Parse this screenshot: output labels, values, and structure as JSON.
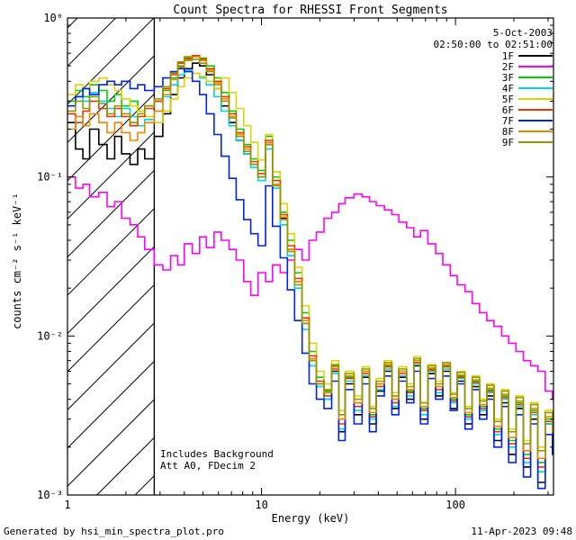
{
  "footer": {
    "left": "Generated by hsi_min_spectra_plot.pro",
    "right": "11-Apr-2023 09:48"
  },
  "annotations": {
    "line1": "Includes Background",
    "line2": "Att A0, FDecim 2"
  },
  "legend": {
    "date": "5-Oct-2003",
    "time": "02:50:00 to 02:51:00"
  },
  "chart_data": {
    "type": "line",
    "title": "Count Spectra for RHESSI Front Segments",
    "xlabel": "Energy (keV)",
    "ylabel": "counts cm⁻² s⁻¹ keV⁻¹",
    "xscale": "log",
    "yscale": "log",
    "xlim": [
      1,
      320
    ],
    "ylim": [
      0.001,
      1
    ],
    "grid": false,
    "legend_position": "top-right",
    "x_ticks": {
      "major": [
        1,
        10,
        100
      ],
      "labels": [
        "1",
        "10",
        "100"
      ]
    },
    "y_ticks": {
      "major": [
        1,
        0.1,
        0.01,
        0.001
      ],
      "labels": [
        "10⁰",
        "10⁻¹",
        "10⁻²",
        "10⁻³"
      ]
    },
    "hatch_region": {
      "xmin": 1,
      "xmax": 2.8
    },
    "x_bins_keV": [
      1.0,
      1.1,
      1.2,
      1.3,
      1.45,
      1.6,
      1.75,
      1.9,
      2.1,
      2.3,
      2.5,
      2.8,
      3.1,
      3.4,
      3.7,
      4.0,
      4.4,
      4.8,
      5.2,
      5.7,
      6.2,
      6.8,
      7.4,
      8.1,
      8.8,
      9.6,
      10.5,
      11.4,
      12.5,
      13.6,
      14.8,
      16.2,
      17.6,
      19.2,
      21,
      23,
      25,
      27,
      30,
      33,
      36,
      39,
      43,
      47,
      51,
      56,
      61,
      66,
      72,
      79,
      86,
      94,
      102,
      112,
      122,
      133,
      145,
      158,
      173,
      188,
      205,
      224,
      244,
      266,
      290,
      316
    ],
    "series": [
      {
        "name": "1F",
        "color": "#000000",
        "values": [
          0.22,
          0.15,
          0.13,
          0.2,
          0.16,
          0.13,
          0.18,
          0.14,
          0.12,
          0.15,
          0.13,
          0.18,
          0.25,
          0.33,
          0.42,
          0.48,
          0.52,
          0.5,
          0.44,
          0.36,
          0.28,
          0.22,
          0.17,
          0.14,
          0.12,
          0.1,
          0.16,
          0.09,
          0.055,
          0.035,
          0.022,
          0.012,
          0.007,
          0.005,
          0.004,
          0.006,
          0.0025,
          0.005,
          0.0032,
          0.0055,
          0.0028,
          0.0045,
          0.006,
          0.0035,
          0.0055,
          0.004,
          0.0065,
          0.003,
          0.0058,
          0.0042,
          0.006,
          0.0035,
          0.0052,
          0.0028,
          0.0048,
          0.0032,
          0.0042,
          0.0022,
          0.0038,
          0.0018,
          0.0035,
          0.0015,
          0.003,
          0.0012,
          0.0028,
          0.002
        ]
      },
      {
        "name": "2F",
        "color": "#ff00ff",
        "values": [
          0.1,
          0.085,
          0.09,
          0.075,
          0.08,
          0.065,
          0.07,
          0.055,
          0.05,
          0.042,
          0.035,
          0.028,
          0.026,
          0.032,
          0.028,
          0.038,
          0.033,
          0.042,
          0.036,
          0.045,
          0.04,
          0.035,
          0.03,
          0.022,
          0.018,
          0.025,
          0.022,
          0.028,
          0.025,
          0.03,
          0.035,
          0.03,
          0.04,
          0.045,
          0.055,
          0.06,
          0.068,
          0.074,
          0.078,
          0.075,
          0.07,
          0.066,
          0.062,
          0.058,
          0.052,
          0.048,
          0.042,
          0.046,
          0.038,
          0.033,
          0.028,
          0.024,
          0.021,
          0.019,
          0.016,
          0.014,
          0.0125,
          0.0115,
          0.01,
          0.009,
          0.008,
          0.007,
          0.0065,
          0.006,
          0.0045,
          0.004
        ]
      },
      {
        "name": "3F",
        "color": "#00cc00",
        "values": [
          0.3,
          0.35,
          0.32,
          0.38,
          0.35,
          0.3,
          0.33,
          0.28,
          0.3,
          0.26,
          0.28,
          0.3,
          0.35,
          0.42,
          0.5,
          0.55,
          0.58,
          0.56,
          0.5,
          0.42,
          0.34,
          0.26,
          0.2,
          0.16,
          0.13,
          0.11,
          0.18,
          0.1,
          0.06,
          0.04,
          0.025,
          0.014,
          0.008,
          0.0055,
          0.0045,
          0.0065,
          0.003,
          0.0055,
          0.0038,
          0.006,
          0.0032,
          0.005,
          0.0065,
          0.004,
          0.006,
          0.0045,
          0.007,
          0.0035,
          0.0062,
          0.0048,
          0.0065,
          0.004,
          0.0056,
          0.0032,
          0.0052,
          0.0036,
          0.0046,
          0.0026,
          0.0042,
          0.0022,
          0.0038,
          0.0018,
          0.0034,
          0.0016,
          0.003,
          0.0025
        ]
      },
      {
        "name": "4F",
        "color": "#00d5e8",
        "values": [
          0.28,
          0.32,
          0.3,
          0.34,
          0.3,
          0.27,
          0.24,
          0.27,
          0.24,
          0.21,
          0.23,
          0.26,
          0.32,
          0.38,
          0.44,
          0.47,
          0.45,
          0.42,
          0.38,
          0.32,
          0.26,
          0.21,
          0.17,
          0.14,
          0.115,
          0.095,
          0.15,
          0.085,
          0.05,
          0.032,
          0.02,
          0.011,
          0.0065,
          0.0048,
          0.004,
          0.0058,
          0.0026,
          0.0052,
          0.0034,
          0.0056,
          0.003,
          0.0046,
          0.0062,
          0.0036,
          0.0056,
          0.0042,
          0.0066,
          0.0032,
          0.006,
          0.0044,
          0.0062,
          0.0038,
          0.0054,
          0.003,
          0.005,
          0.0034,
          0.0044,
          0.0024,
          0.004,
          0.002,
          0.0036,
          0.0016,
          0.0032,
          0.0014,
          0.0028,
          0.0022
        ]
      },
      {
        "name": "5F",
        "color": "#e0d200",
        "values": [
          0.33,
          0.38,
          0.36,
          0.4,
          0.42,
          0.38,
          0.35,
          0.31,
          0.28,
          0.26,
          0.24,
          0.22,
          0.26,
          0.31,
          0.37,
          0.42,
          0.45,
          0.43,
          0.4,
          0.36,
          0.42,
          0.34,
          0.27,
          0.21,
          0.165,
          0.128,
          0.185,
          0.108,
          0.068,
          0.044,
          0.027,
          0.0155,
          0.009,
          0.006,
          0.005,
          0.007,
          0.0034,
          0.006,
          0.0042,
          0.0064,
          0.0036,
          0.0054,
          0.007,
          0.0044,
          0.0064,
          0.005,
          0.0074,
          0.0038,
          0.0066,
          0.0052,
          0.0068,
          0.0044,
          0.006,
          0.0036,
          0.0056,
          0.004,
          0.005,
          0.003,
          0.0046,
          0.0026,
          0.0042,
          0.0022,
          0.0038,
          0.002,
          0.0034,
          0.0028
        ]
      },
      {
        "name": "6F",
        "color": "#ee3300",
        "values": [
          0.25,
          0.22,
          0.26,
          0.3,
          0.27,
          0.24,
          0.27,
          0.24,
          0.21,
          0.24,
          0.27,
          0.3,
          0.36,
          0.44,
          0.52,
          0.56,
          0.58,
          0.55,
          0.48,
          0.4,
          0.32,
          0.25,
          0.19,
          0.155,
          0.125,
          0.105,
          0.17,
          0.095,
          0.058,
          0.037,
          0.023,
          0.013,
          0.0075,
          0.0052,
          0.0042,
          0.0062,
          0.0028,
          0.0054,
          0.0036,
          0.0058,
          0.0031,
          0.0048,
          0.0064,
          0.0038,
          0.0058,
          0.0044,
          0.0068,
          0.0034,
          0.0061,
          0.0046,
          0.0064,
          0.0039,
          0.0055,
          0.0031,
          0.0051,
          0.0035,
          0.0045,
          0.0025,
          0.0041,
          0.0021,
          0.0037,
          0.0017,
          0.0033,
          0.0015,
          0.0029,
          0.0023
        ]
      },
      {
        "name": "7F",
        "color": "#0022ee",
        "values": [
          0.28,
          0.32,
          0.36,
          0.33,
          0.38,
          0.4,
          0.38,
          0.4,
          0.36,
          0.38,
          0.35,
          0.37,
          0.42,
          0.46,
          0.48,
          0.46,
          0.4,
          0.33,
          0.25,
          0.185,
          0.135,
          0.098,
          0.072,
          0.054,
          0.044,
          0.037,
          0.088,
          0.049,
          0.031,
          0.0195,
          0.0125,
          0.0078,
          0.005,
          0.004,
          0.0035,
          0.0052,
          0.0022,
          0.0046,
          0.0028,
          0.005,
          0.0025,
          0.0042,
          0.0056,
          0.0032,
          0.0052,
          0.0038,
          0.006,
          0.0028,
          0.0054,
          0.004,
          0.0056,
          0.0034,
          0.005,
          0.0026,
          0.0046,
          0.003,
          0.004,
          0.002,
          0.0036,
          0.0016,
          0.0032,
          0.0013,
          0.0028,
          0.0011,
          0.0024,
          0.0018
        ]
      },
      {
        "name": "8F",
        "color": "#f28500",
        "values": [
          0.2,
          0.24,
          0.21,
          0.25,
          0.22,
          0.19,
          0.22,
          0.19,
          0.17,
          0.19,
          0.22,
          0.26,
          0.33,
          0.41,
          0.49,
          0.54,
          0.57,
          0.54,
          0.47,
          0.39,
          0.31,
          0.24,
          0.185,
          0.15,
          0.12,
          0.1,
          0.165,
          0.09,
          0.056,
          0.035,
          0.022,
          0.0125,
          0.0072,
          0.005,
          0.0044,
          0.0064,
          0.003,
          0.0056,
          0.0038,
          0.006,
          0.0033,
          0.005,
          0.0066,
          0.004,
          0.006,
          0.0046,
          0.007,
          0.0036,
          0.0063,
          0.0048,
          0.0066,
          0.0041,
          0.0057,
          0.0033,
          0.0053,
          0.0037,
          0.0047,
          0.0027,
          0.0043,
          0.0023,
          0.0039,
          0.0019,
          0.0035,
          0.0017,
          0.0031,
          0.0025
        ]
      },
      {
        "name": "9F",
        "color": "#8f9900",
        "values": [
          0.26,
          0.3,
          0.27,
          0.32,
          0.29,
          0.25,
          0.28,
          0.25,
          0.22,
          0.25,
          0.28,
          0.31,
          0.37,
          0.45,
          0.53,
          0.57,
          0.55,
          0.52,
          0.46,
          0.38,
          0.3,
          0.235,
          0.18,
          0.145,
          0.12,
          0.1,
          0.16,
          0.088,
          0.054,
          0.034,
          0.021,
          0.012,
          0.007,
          0.005,
          0.0046,
          0.0066,
          0.0032,
          0.0058,
          0.004,
          0.0062,
          0.0035,
          0.0052,
          0.0068,
          0.0042,
          0.0062,
          0.0048,
          0.0072,
          0.0038,
          0.0065,
          0.005,
          0.0068,
          0.0043,
          0.0059,
          0.0035,
          0.0055,
          0.0039,
          0.0049,
          0.0029,
          0.0045,
          0.0025,
          0.0041,
          0.0021,
          0.0037,
          0.0019,
          0.0033,
          0.0027
        ]
      }
    ]
  }
}
